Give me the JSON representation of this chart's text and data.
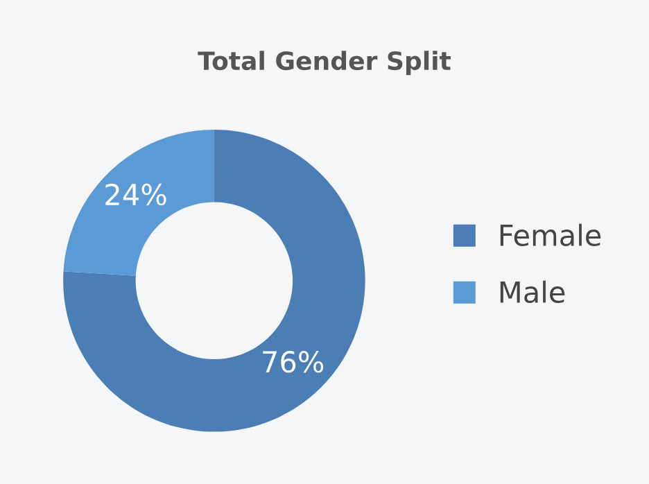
{
  "chart_data": {
    "type": "donut",
    "title": "Total Gender Split",
    "categories": [
      "Female",
      "Male"
    ],
    "values": [
      76,
      24
    ],
    "colors": [
      "#4a7eb5",
      "#5b9bd5"
    ],
    "value_labels": [
      "76%",
      "24%"
    ],
    "legend": "right"
  }
}
